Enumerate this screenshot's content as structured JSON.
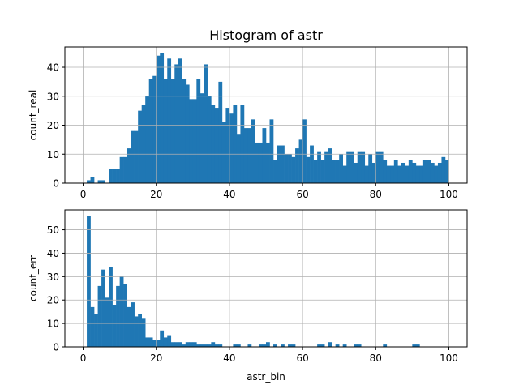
{
  "chart_data": [
    {
      "type": "bar",
      "title": "Histogram of astr",
      "xlabel": "",
      "ylabel": "count_real",
      "xlim": [
        -5,
        105
      ],
      "ylim": [
        0,
        47
      ],
      "xticks": [
        0,
        20,
        40,
        60,
        80,
        100
      ],
      "yticks": [
        0,
        10,
        20,
        30,
        40
      ],
      "grid": true,
      "color": "#1f77b4",
      "bin_width": 1,
      "x": [
        0,
        1,
        2,
        3,
        4,
        5,
        6,
        7,
        8,
        9,
        10,
        11,
        12,
        13,
        14,
        15,
        16,
        17,
        18,
        19,
        20,
        21,
        22,
        23,
        24,
        25,
        26,
        27,
        28,
        29,
        30,
        31,
        32,
        33,
        34,
        35,
        36,
        37,
        38,
        39,
        40,
        41,
        42,
        43,
        44,
        45,
        46,
        47,
        48,
        49,
        50,
        51,
        52,
        53,
        54,
        55,
        56,
        57,
        58,
        59,
        60,
        61,
        62,
        63,
        64,
        65,
        66,
        67,
        68,
        69,
        70,
        71,
        72,
        73,
        74,
        75,
        76,
        77,
        78,
        79,
        80,
        81,
        82,
        83,
        84,
        85,
        86,
        87,
        88,
        89,
        90,
        91,
        92,
        93,
        94,
        95,
        96,
        97,
        98,
        99
      ],
      "values": [
        0,
        1,
        2,
        0,
        1,
        1,
        0,
        5,
        5,
        5,
        9,
        9,
        12,
        18,
        18,
        25,
        27,
        30,
        36,
        37,
        44,
        45,
        36,
        43,
        36,
        41,
        43,
        36,
        34,
        29,
        29,
        36,
        31,
        41,
        30,
        27,
        26,
        35,
        21,
        26,
        24,
        27,
        17,
        27,
        19,
        19,
        22,
        14,
        14,
        19,
        14,
        22,
        8,
        13,
        13,
        10,
        10,
        9,
        12,
        15,
        22,
        9,
        13,
        8,
        11,
        8,
        11,
        12,
        8,
        8,
        10,
        6,
        11,
        11,
        7,
        11,
        11,
        6,
        10,
        7,
        11,
        11,
        8,
        6,
        6,
        8,
        6,
        7,
        6,
        8,
        7,
        6,
        6,
        8,
        8,
        7,
        6,
        7,
        9,
        8
      ]
    },
    {
      "type": "bar",
      "title": "",
      "xlabel": "astr_bin",
      "ylabel": "count_err",
      "xlim": [
        -5,
        105
      ],
      "ylim": [
        0,
        58.5
      ],
      "xticks": [
        0,
        20,
        40,
        60,
        80,
        100
      ],
      "yticks": [
        0,
        10,
        20,
        30,
        40,
        50
      ],
      "grid": true,
      "color": "#1f77b4",
      "bin_width": 1,
      "x": [
        0,
        1,
        2,
        3,
        4,
        5,
        6,
        7,
        8,
        9,
        10,
        11,
        12,
        13,
        14,
        15,
        16,
        17,
        18,
        19,
        20,
        21,
        22,
        23,
        24,
        25,
        26,
        27,
        28,
        29,
        30,
        31,
        32,
        33,
        34,
        35,
        36,
        37,
        38,
        39,
        40,
        41,
        42,
        43,
        44,
        45,
        46,
        47,
        48,
        49,
        50,
        51,
        52,
        53,
        54,
        55,
        56,
        57,
        58,
        59,
        60,
        61,
        62,
        63,
        64,
        65,
        66,
        67,
        68,
        69,
        70,
        71,
        72,
        73,
        74,
        75,
        76,
        77,
        78,
        79,
        80,
        81,
        82,
        83,
        84,
        85,
        86,
        87,
        88,
        89,
        90,
        91,
        92,
        93,
        94,
        95,
        96,
        97,
        98,
        99
      ],
      "values": [
        0,
        56,
        17,
        14,
        26,
        33,
        21,
        34,
        18,
        26,
        30,
        27,
        17,
        19,
        13,
        14,
        12,
        4,
        4,
        3,
        3,
        7,
        4,
        5,
        2,
        2,
        2,
        1,
        2,
        2,
        2,
        1,
        1,
        1,
        1,
        2,
        1,
        1,
        0,
        0,
        0,
        1,
        1,
        0,
        0,
        1,
        0,
        0,
        1,
        1,
        2,
        0,
        1,
        0,
        1,
        0,
        1,
        1,
        0,
        0,
        0,
        0,
        0,
        0,
        1,
        1,
        0,
        2,
        0,
        1,
        0,
        1,
        0,
        0,
        1,
        1,
        0,
        0,
        0,
        0,
        0,
        0,
        1,
        0,
        0,
        0,
        0,
        0,
        0,
        0,
        1,
        1,
        0,
        0,
        0,
        0,
        0,
        0,
        0,
        0
      ]
    }
  ]
}
